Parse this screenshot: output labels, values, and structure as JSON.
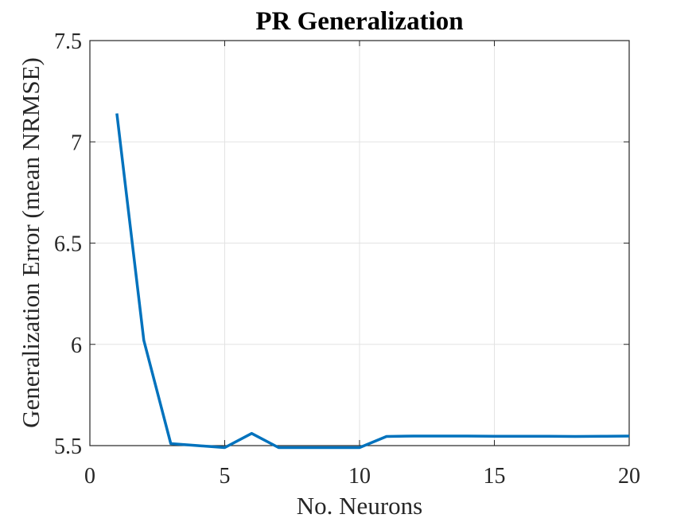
{
  "chart_data": {
    "type": "line",
    "title": "PR Generalization",
    "xlabel": "No. Neurons",
    "ylabel": "Generalization Error (mean NRMSE)",
    "xlim": [
      0,
      20
    ],
    "ylim": [
      5.5,
      7.5
    ],
    "xticks": [
      "0",
      "5",
      "10",
      "15",
      "20"
    ],
    "yticks": [
      "5.5",
      "6",
      "6.5",
      "7",
      "7.5"
    ],
    "grid": true,
    "legend": "none",
    "series": [
      {
        "color": "#0072BD",
        "x": [
          1,
          2,
          3,
          4,
          5,
          6,
          7,
          8,
          9,
          10,
          11,
          12,
          13,
          14,
          15,
          16,
          17,
          18,
          19,
          20
        ],
        "values": [
          7.14,
          6.02,
          5.51,
          5.5,
          5.49,
          5.56,
          5.49,
          5.49,
          5.49,
          5.49,
          5.545,
          5.547,
          5.547,
          5.547,
          5.546,
          5.546,
          5.546,
          5.545,
          5.546,
          5.547
        ]
      }
    ]
  }
}
